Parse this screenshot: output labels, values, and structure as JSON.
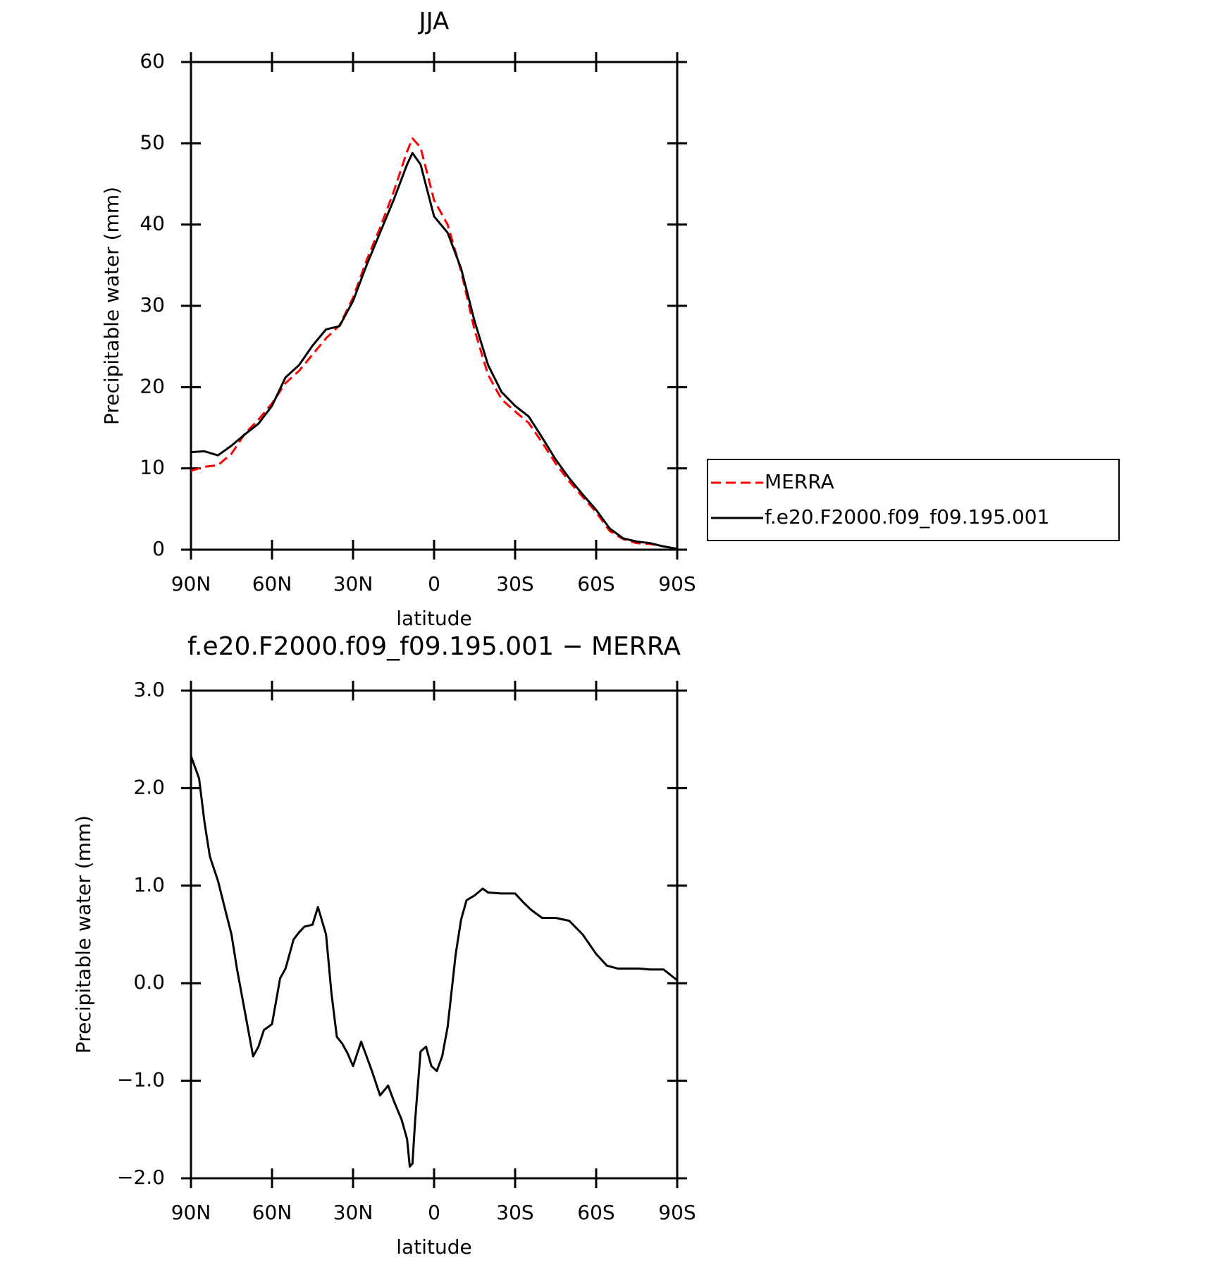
{
  "chart_data": [
    {
      "type": "line",
      "title": "JJA",
      "xlabel": "latitude",
      "ylabel": "Precipitable water (mm)",
      "x": [
        90,
        85,
        80,
        75,
        70,
        65,
        60,
        55,
        50,
        45,
        40,
        35,
        30,
        25,
        20,
        15,
        10,
        8,
        5,
        0,
        -5,
        -10,
        -15,
        -20,
        -25,
        -30,
        -35,
        -40,
        -45,
        -50,
        -55,
        -60,
        -65,
        -70,
        -75,
        -80,
        -85,
        -90
      ],
      "xlim": [
        90,
        -90
      ],
      "xticks": [
        {
          "value": 90,
          "label": "90N"
        },
        {
          "value": 60,
          "label": "60N"
        },
        {
          "value": 30,
          "label": "30N"
        },
        0,
        {
          "value": -30,
          "label": "30S"
        },
        {
          "value": -60,
          "label": "60S"
        },
        {
          "value": -90,
          "label": "90S"
        }
      ],
      "ylim": [
        0,
        60
      ],
      "yticks": [
        0,
        10,
        20,
        30,
        40,
        50,
        60
      ],
      "legend": "right",
      "series": [
        {
          "name": "MERRA",
          "color": "#ff0000",
          "dash": true,
          "values": [
            9.7,
            10.2,
            10.4,
            11.8,
            14.3,
            16.0,
            18.0,
            20.5,
            22.0,
            24.0,
            26.0,
            27.6,
            31.0,
            35.6,
            39.6,
            44.0,
            49.0,
            50.6,
            49.5,
            43.0,
            40.0,
            34.3,
            27.0,
            21.5,
            18.5,
            17.0,
            15.6,
            13.2,
            10.6,
            8.4,
            6.5,
            4.6,
            2.3,
            1.3,
            0.8,
            0.7,
            0.4,
            0.1
          ]
        },
        {
          "name": "f.e20.F2000.f09_f09.195.001",
          "color": "#000000",
          "dash": false,
          "values": [
            12.0,
            12.1,
            11.6,
            12.8,
            14.2,
            15.5,
            17.7,
            21.2,
            22.7,
            25.1,
            27.1,
            27.5,
            30.6,
            35.0,
            39.0,
            43.0,
            47.4,
            48.8,
            47.4,
            41.0,
            39.0,
            34.6,
            28.1,
            22.7,
            19.4,
            17.7,
            16.4,
            13.8,
            11.1,
            8.8,
            6.8,
            4.9,
            2.6,
            1.4,
            1.0,
            0.8,
            0.4,
            0.1
          ]
        }
      ]
    },
    {
      "type": "line",
      "title": "f.e20.F2000.f09_f09.195.001 − MERRA",
      "xlabel": "latitude",
      "ylabel": "Precipitable water (mm)",
      "x": [
        90,
        87,
        85,
        83,
        80,
        77,
        75,
        73,
        70,
        67,
        65,
        63,
        60,
        57,
        55,
        52,
        50,
        48,
        45,
        43,
        40,
        38,
        36,
        34,
        32,
        30,
        27,
        25,
        23,
        20,
        17,
        15,
        12,
        10,
        9,
        8,
        7,
        5,
        3,
        1,
        -1,
        -3,
        -5,
        -8,
        -10,
        -12,
        -15,
        -18,
        -20,
        -25,
        -30,
        -33,
        -36,
        -40,
        -45,
        -50,
        -55,
        -60,
        -64,
        -68,
        -72,
        -76,
        -80,
        -85,
        -90
      ],
      "xlim": [
        90,
        -90
      ],
      "xticks": [
        {
          "value": 90,
          "label": "90N"
        },
        {
          "value": 60,
          "label": "60N"
        },
        {
          "value": 30,
          "label": "30N"
        },
        0,
        {
          "value": -30,
          "label": "30S"
        },
        {
          "value": -60,
          "label": "60S"
        },
        {
          "value": -90,
          "label": "90S"
        }
      ],
      "ylim": [
        -2,
        3
      ],
      "yticks": [
        {
          "value": -2,
          "label": "−2.0"
        },
        {
          "value": -1,
          "label": "−1.0"
        },
        {
          "value": 0,
          "label": "0.0"
        },
        {
          "value": 1,
          "label": "1.0"
        },
        {
          "value": 2,
          "label": "2.0"
        },
        {
          "value": 3,
          "label": "3.0"
        }
      ],
      "series": [
        {
          "color": "#000000",
          "dash": false,
          "values": [
            2.33,
            2.1,
            1.65,
            1.3,
            1.05,
            0.72,
            0.5,
            0.15,
            -0.3,
            -0.75,
            -0.65,
            -0.48,
            -0.42,
            0.05,
            0.15,
            0.45,
            0.52,
            0.58,
            0.6,
            0.78,
            0.5,
            -0.1,
            -0.55,
            -0.62,
            -0.72,
            -0.85,
            -0.6,
            -0.75,
            -0.9,
            -1.15,
            -1.05,
            -1.2,
            -1.4,
            -1.6,
            -1.88,
            -1.85,
            -1.4,
            -0.7,
            -0.65,
            -0.85,
            -0.9,
            -0.75,
            -0.45,
            0.3,
            0.65,
            0.85,
            0.9,
            0.97,
            0.93,
            0.92,
            0.92,
            0.83,
            0.75,
            0.67,
            0.67,
            0.64,
            0.5,
            0.3,
            0.18,
            0.15,
            0.15,
            0.15,
            0.14,
            0.14,
            0.03
          ]
        }
      ]
    }
  ]
}
